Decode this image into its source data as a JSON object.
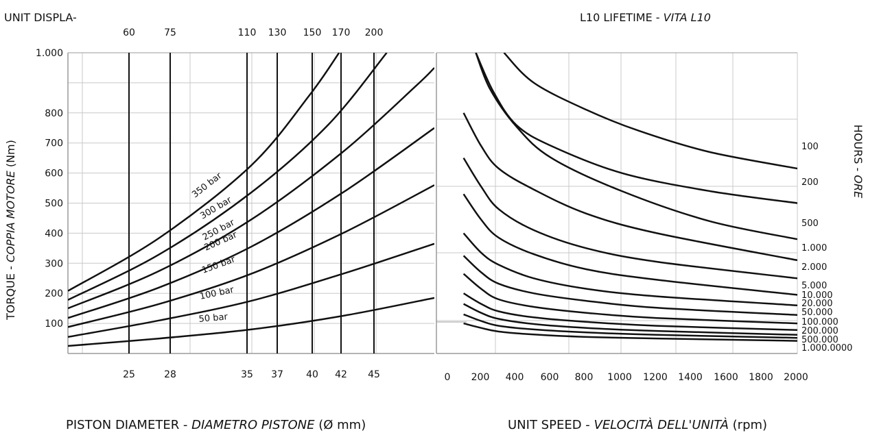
{
  "header": {
    "unit_displacement_label": "UNIT DISPLA-",
    "lifetime_title": "L10 LIFETIME - ",
    "lifetime_title_italic": "VITA L10"
  },
  "footer": {
    "piston_label": "PISTON DIAMETER - ",
    "piston_label_italic": "DIAMETRO PISTONE",
    "piston_unit": " (Ø mm)",
    "speed_label": "UNIT SPEED - ",
    "speed_label_italic": "VELOCITÀ DELL'UNITÀ",
    "speed_unit": " (rpm)"
  },
  "side_labels": {
    "torque_label": "TORQUE - ",
    "torque_label_italic": "COPPIA MOTORE",
    "torque_unit": "  (Nm)",
    "hours_label": "HOURS - ",
    "hours_label_italic": "ORE"
  },
  "chart_data": [
    {
      "type": "line",
      "name": "torque_vs_piston_diameter",
      "ylim": [
        0,
        1000
      ],
      "y_ticks": [
        {
          "value": 100,
          "label": "100"
        },
        {
          "value": 200,
          "label": "200"
        },
        {
          "value": 300,
          "label": "300"
        },
        {
          "value": 400,
          "label": "400"
        },
        {
          "value": 500,
          "label": "500"
        },
        {
          "value": 600,
          "label": "600"
        },
        {
          "value": 700,
          "label": "700"
        },
        {
          "value": 800,
          "label": "800"
        },
        {
          "value": 1000,
          "label": "1.000"
        }
      ],
      "diameter_ticks": [
        "25",
        "28",
        "35",
        "37",
        "40",
        "42",
        "45"
      ],
      "displacement_ticks": [
        "60",
        "75",
        "110",
        "130",
        "150",
        "170",
        "200"
      ],
      "series": [
        {
          "name": "50 bar",
          "label": "50 bar",
          "values": [
            {
              "x": 0,
              "y": 25
            },
            {
              "x": 0.25,
              "y": 50
            },
            {
              "x": 0.5,
              "y": 80
            },
            {
              "x": 0.75,
              "y": 125
            },
            {
              "x": 1,
              "y": 185
            }
          ]
        },
        {
          "name": "100 bar",
          "label": "100 bar",
          "values": [
            {
              "x": 0,
              "y": 55
            },
            {
              "x": 0.25,
              "y": 110
            },
            {
              "x": 0.5,
              "y": 175
            },
            {
              "x": 0.75,
              "y": 265
            },
            {
              "x": 1,
              "y": 365
            }
          ]
        },
        {
          "name": "150 bar",
          "label": "150 bar",
          "values": [
            {
              "x": 0,
              "y": 88
            },
            {
              "x": 0.25,
              "y": 165
            },
            {
              "x": 0.5,
              "y": 265
            },
            {
              "x": 0.75,
              "y": 400
            },
            {
              "x": 1,
              "y": 560
            }
          ]
        },
        {
          "name": "200 bar",
          "label": "200 bar",
          "values": [
            {
              "x": 0,
              "y": 118
            },
            {
              "x": 0.25,
              "y": 220
            },
            {
              "x": 0.5,
              "y": 355
            },
            {
              "x": 0.75,
              "y": 535
            },
            {
              "x": 1,
              "y": 750
            }
          ]
        },
        {
          "name": "250 bar",
          "label": "250 bar",
          "values": [
            {
              "x": 0,
              "y": 150
            },
            {
              "x": 0.25,
              "y": 275
            },
            {
              "x": 0.5,
              "y": 445
            },
            {
              "x": 0.75,
              "y": 670
            },
            {
              "x": 0.95,
              "y": 890
            },
            {
              "x": 1,
              "y": 950
            }
          ]
        },
        {
          "name": "300 bar",
          "label": "300 bar",
          "values": [
            {
              "x": 0,
              "y": 178
            },
            {
              "x": 0.25,
              "y": 330
            },
            {
              "x": 0.5,
              "y": 535
            },
            {
              "x": 0.71,
              "y": 760
            },
            {
              "x": 0.87,
              "y": 1000
            }
          ]
        },
        {
          "name": "350 bar",
          "label": "350 bar",
          "values": [
            {
              "x": 0,
              "y": 208
            },
            {
              "x": 0.25,
              "y": 385
            },
            {
              "x": 0.5,
              "y": 625
            },
            {
              "x": 0.66,
              "y": 860
            },
            {
              "x": 0.74,
              "y": 1000
            }
          ]
        }
      ]
    },
    {
      "type": "line",
      "name": "lifetime_vs_speed",
      "xlim": [
        0,
        2000
      ],
      "x_ticks": [
        "0",
        "200",
        "400",
        "600",
        "800",
        "1000",
        "1200",
        "1400",
        "1600",
        "1800",
        "2000"
      ],
      "series": [
        {
          "name": "100",
          "label": "100",
          "values": [
            {
              "x": 330,
              "y": 1000
            },
            {
              "x": 500,
              "y": 900
            },
            {
              "x": 800,
              "y": 810
            },
            {
              "x": 1100,
              "y": 740
            },
            {
              "x": 1500,
              "y": 670
            },
            {
              "x": 2000,
              "y": 615
            }
          ]
        },
        {
          "name": "200",
          "label": "200",
          "values": [
            {
              "x": 170,
              "y": 1000
            },
            {
              "x": 270,
              "y": 870
            },
            {
              "x": 400,
              "y": 760
            },
            {
              "x": 600,
              "y": 690
            },
            {
              "x": 1000,
              "y": 600
            },
            {
              "x": 1500,
              "y": 540
            },
            {
              "x": 2000,
              "y": 500
            }
          ]
        },
        {
          "name": "500",
          "label": "500",
          "values": [
            {
              "x": 170,
              "y": 1000
            },
            {
              "x": 250,
              "y": 880
            },
            {
              "x": 400,
              "y": 755
            },
            {
              "x": 600,
              "y": 650
            },
            {
              "x": 1000,
              "y": 540
            },
            {
              "x": 1500,
              "y": 440
            },
            {
              "x": 2000,
              "y": 380
            }
          ]
        },
        {
          "name": "1.000",
          "label": "1.000",
          "values": [
            {
              "x": 100,
              "y": 800
            },
            {
              "x": 200,
              "y": 690
            },
            {
              "x": 300,
              "y": 615
            },
            {
              "x": 500,
              "y": 545
            },
            {
              "x": 800,
              "y": 465
            },
            {
              "x": 1200,
              "y": 400
            },
            {
              "x": 2000,
              "y": 310
            }
          ]
        },
        {
          "name": "2.000",
          "label": "2.000",
          "values": [
            {
              "x": 100,
              "y": 650
            },
            {
              "x": 200,
              "y": 555
            },
            {
              "x": 300,
              "y": 480
            },
            {
              "x": 500,
              "y": 410
            },
            {
              "x": 800,
              "y": 350
            },
            {
              "x": 1200,
              "y": 305
            },
            {
              "x": 2000,
              "y": 250
            }
          ]
        },
        {
          "name": "5.000",
          "label": "5.000",
          "values": [
            {
              "x": 100,
              "y": 530
            },
            {
              "x": 200,
              "y": 445
            },
            {
              "x": 300,
              "y": 385
            },
            {
              "x": 500,
              "y": 330
            },
            {
              "x": 800,
              "y": 280
            },
            {
              "x": 1200,
              "y": 245
            },
            {
              "x": 2000,
              "y": 195
            }
          ]
        },
        {
          "name": "10.000",
          "label": "10.000",
          "values": [
            {
              "x": 100,
              "y": 400
            },
            {
              "x": 200,
              "y": 335
            },
            {
              "x": 300,
              "y": 295
            },
            {
              "x": 500,
              "y": 250
            },
            {
              "x": 800,
              "y": 215
            },
            {
              "x": 1200,
              "y": 190
            },
            {
              "x": 2000,
              "y": 160
            }
          ]
        },
        {
          "name": "20.000",
          "label": "20.000",
          "values": [
            {
              "x": 100,
              "y": 325
            },
            {
              "x": 200,
              "y": 270
            },
            {
              "x": 300,
              "y": 232
            },
            {
              "x": 500,
              "y": 200
            },
            {
              "x": 800,
              "y": 175
            },
            {
              "x": 1200,
              "y": 152
            },
            {
              "x": 2000,
              "y": 128
            }
          ]
        },
        {
          "name": "50.000",
          "label": "50.000",
          "values": [
            {
              "x": 100,
              "y": 265
            },
            {
              "x": 200,
              "y": 215
            },
            {
              "x": 300,
              "y": 180
            },
            {
              "x": 500,
              "y": 155
            },
            {
              "x": 800,
              "y": 135
            },
            {
              "x": 1200,
              "y": 118
            },
            {
              "x": 2000,
              "y": 100
            }
          ]
        },
        {
          "name": "100.000",
          "label": "100.000",
          "values": [
            {
              "x": 100,
              "y": 200
            },
            {
              "x": 200,
              "y": 165
            },
            {
              "x": 300,
              "y": 140
            },
            {
              "x": 500,
              "y": 120
            },
            {
              "x": 800,
              "y": 105
            },
            {
              "x": 1200,
              "y": 92
            },
            {
              "x": 2000,
              "y": 78
            }
          ]
        },
        {
          "name": "200.000",
          "label": "200.000",
          "values": [
            {
              "x": 100,
              "y": 165
            },
            {
              "x": 200,
              "y": 135
            },
            {
              "x": 300,
              "y": 115
            },
            {
              "x": 500,
              "y": 98
            },
            {
              "x": 800,
              "y": 85
            },
            {
              "x": 1200,
              "y": 75
            },
            {
              "x": 2000,
              "y": 62
            }
          ]
        },
        {
          "name": "500.000",
          "label": "500.000",
          "values": [
            {
              "x": 100,
              "y": 130
            },
            {
              "x": 200,
              "y": 108
            },
            {
              "x": 300,
              "y": 92
            },
            {
              "x": 500,
              "y": 80
            },
            {
              "x": 800,
              "y": 70
            },
            {
              "x": 1200,
              "y": 62
            },
            {
              "x": 2000,
              "y": 52
            }
          ]
        },
        {
          "name": "1.000.0000",
          "label": "1.000.0000",
          "values": [
            {
              "x": 100,
              "y": 100
            },
            {
              "x": 200,
              "y": 85
            },
            {
              "x": 300,
              "y": 73
            },
            {
              "x": 500,
              "y": 63
            },
            {
              "x": 800,
              "y": 55
            },
            {
              "x": 1200,
              "y": 50
            },
            {
              "x": 2000,
              "y": 42
            }
          ]
        }
      ]
    }
  ],
  "colors": {
    "curve": "#111111",
    "grid": "#c8c8c8",
    "frame": "#9a9a9a",
    "text": "#111111"
  }
}
